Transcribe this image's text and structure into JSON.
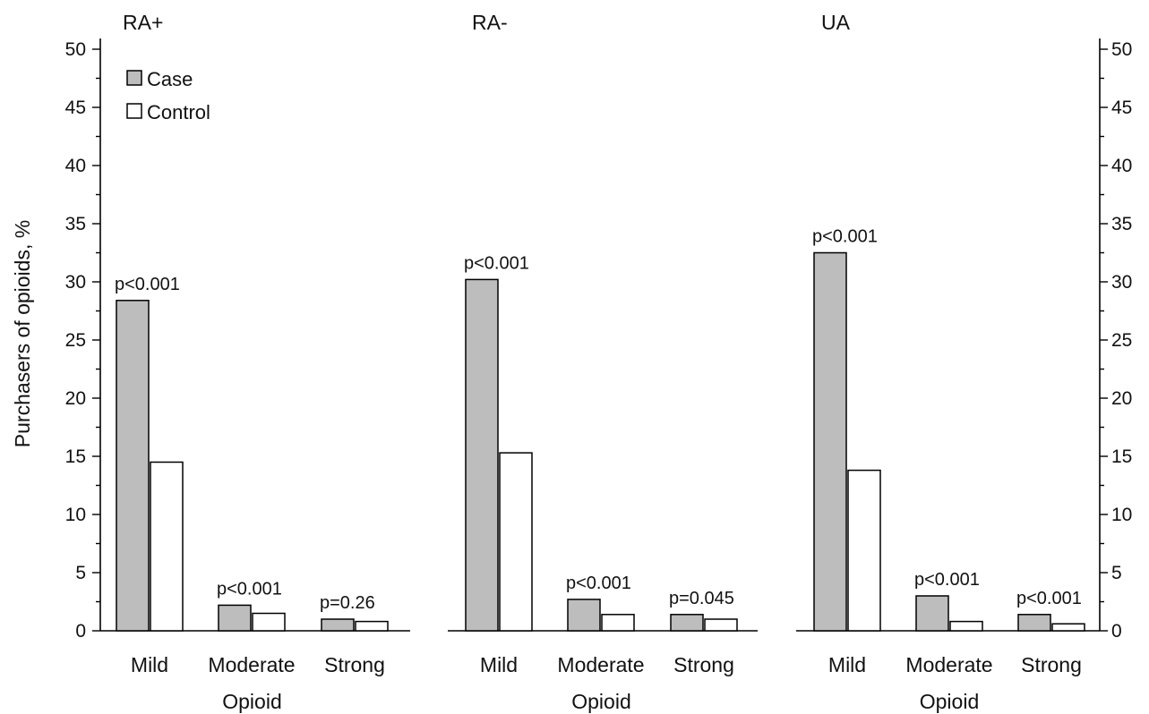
{
  "chart_data": {
    "type": "bar",
    "ylabel": "Purchasers of opioids, %",
    "ylim": [
      0,
      50
    ],
    "yticks": [
      "0",
      "5",
      "10",
      "15",
      "20",
      "25",
      "30",
      "35",
      "40",
      "45",
      "50"
    ],
    "grid": false,
    "legend_placement": "top-left",
    "legend": [
      {
        "name": "Case",
        "color": "#bdbdbd"
      },
      {
        "name": "Control",
        "color": "#ffffff"
      }
    ],
    "panels": [
      {
        "title": "RA+",
        "xlabel": "Opioid",
        "categories": [
          "Mild",
          "Moderate",
          "Strong"
        ],
        "series": [
          {
            "name": "Case",
            "values": [
              28.4,
              2.2,
              1.0
            ]
          },
          {
            "name": "Control",
            "values": [
              14.5,
              1.5,
              0.8
            ]
          }
        ],
        "p_values": [
          "p<0.001",
          "p<0.001",
          "p=0.26"
        ]
      },
      {
        "title": "RA-",
        "xlabel": "Opioid",
        "categories": [
          "Mild",
          "Moderate",
          "Strong"
        ],
        "series": [
          {
            "name": "Case",
            "values": [
              30.2,
              2.7,
              1.4
            ]
          },
          {
            "name": "Control",
            "values": [
              15.3,
              1.4,
              1.0
            ]
          }
        ],
        "p_values": [
          "p<0.001",
          "p<0.001",
          "p=0.045"
        ]
      },
      {
        "title": "UA",
        "xlabel": "Opioid",
        "categories": [
          "Mild",
          "Moderate",
          "Strong"
        ],
        "series": [
          {
            "name": "Case",
            "values": [
              32.5,
              3.0,
              1.4
            ]
          },
          {
            "name": "Control",
            "values": [
              13.8,
              0.8,
              0.6
            ]
          }
        ],
        "p_values": [
          "p<0.001",
          "p<0.001",
          "p<0.001"
        ]
      }
    ]
  }
}
